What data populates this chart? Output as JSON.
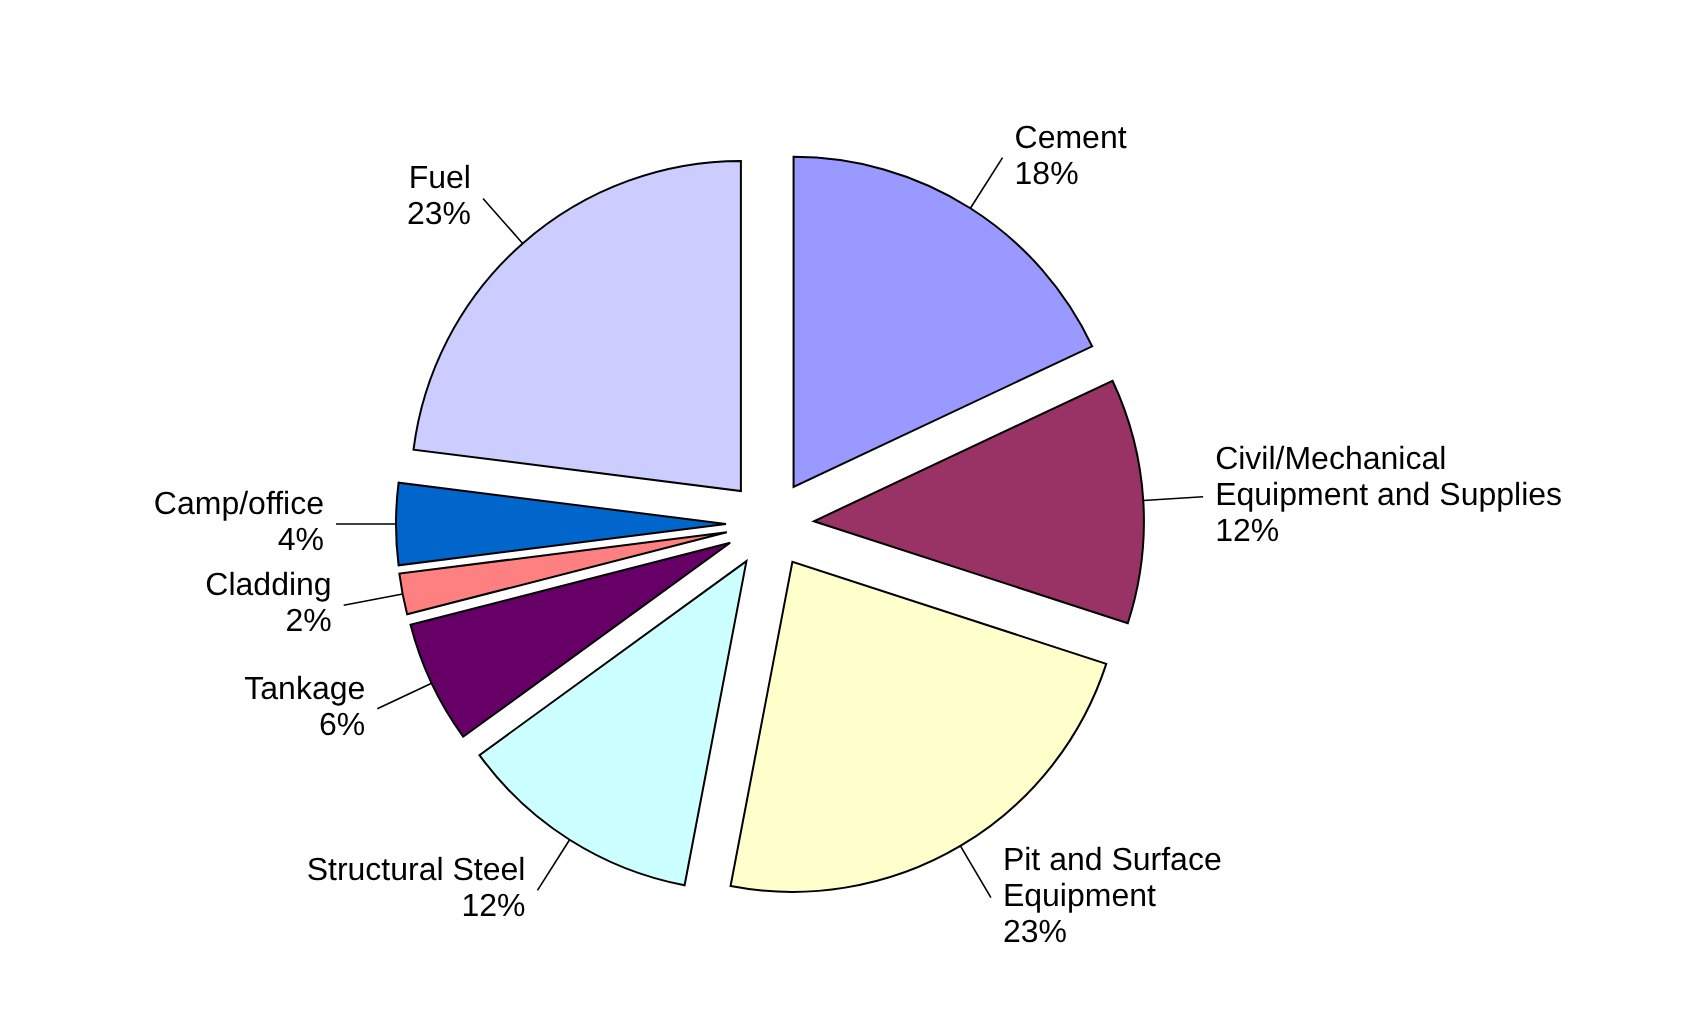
{
  "chart_data": {
    "type": "pie",
    "categories": [
      "Cement",
      "Civil/Mechanical Equipment and Supplies",
      "Pit and Surface Equipment",
      "Structural Steel",
      "Tankage",
      "Cladding",
      "Camp/office",
      "Fuel"
    ],
    "values": [
      18,
      12,
      23,
      12,
      6,
      2,
      4,
      23
    ],
    "value_labels": [
      "18%",
      "12%",
      "23%",
      "12%",
      "6%",
      "2%",
      "4%",
      "23%"
    ],
    "colors": [
      "#9999ff",
      "#993366",
      "#ffffcc",
      "#ccffff",
      "#660066",
      "#ff8080",
      "#0066cc",
      "#ccccff"
    ]
  }
}
